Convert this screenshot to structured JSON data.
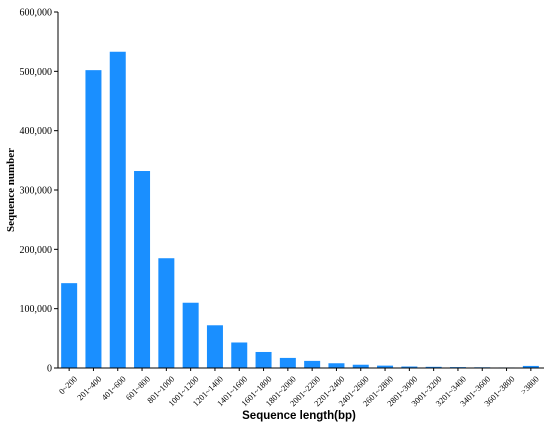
{
  "chart_data": {
    "type": "bar",
    "title": "",
    "xlabel": "Sequence length(bp)",
    "ylabel": "Sequence number",
    "ylim": [
      0,
      600000
    ],
    "yticks": [
      "0",
      "100,000",
      "200,000",
      "300,000",
      "400,000",
      "500,000",
      "600,000"
    ],
    "ytick_values": [
      0,
      100000,
      200000,
      300000,
      400000,
      500000,
      600000
    ],
    "categories": [
      "0~200",
      "201~400",
      "401~600",
      "601~800",
      "801~1000",
      "1001~1200",
      "1201~1400",
      "1401~1600",
      "1601~1800",
      "1801~2000",
      "2001~2200",
      "2201~2400",
      "2401~2600",
      "2601~2800",
      "2801~3000",
      "3001~3200",
      "3201~3400",
      "3401~3600",
      "3601~3800",
      ">3800"
    ],
    "values": [
      143000,
      502000,
      533000,
      332000,
      185000,
      110000,
      72000,
      43000,
      27000,
      17000,
      12000,
      8000,
      5500,
      4000,
      2500,
      2000,
      1500,
      1200,
      900,
      3500
    ],
    "bar_color": "#1a8fff",
    "grid": false,
    "legend": "none"
  }
}
